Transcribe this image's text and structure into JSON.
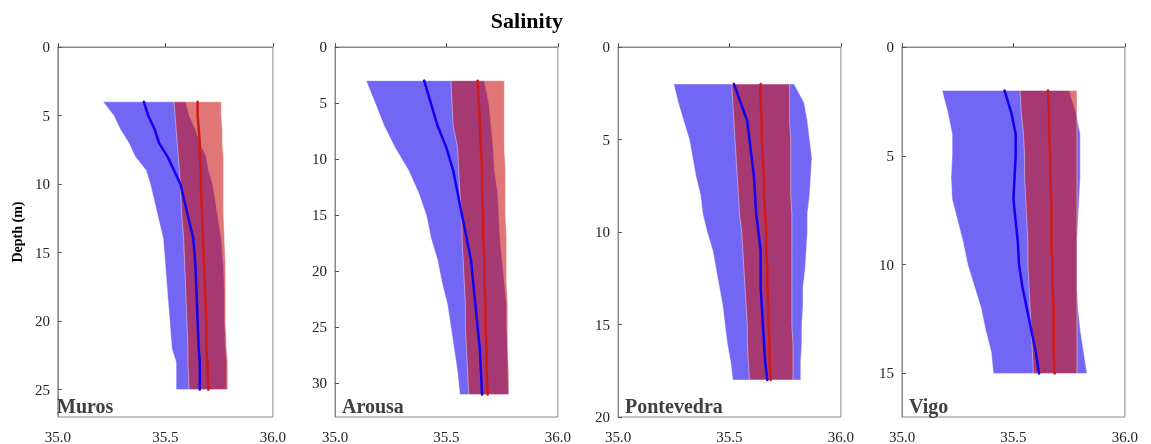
{
  "chart_data": [
    {
      "type": "line",
      "orientation": "horizontal",
      "ylabel": "Depth (m)",
      "annotations": [
        "Muros"
      ],
      "xlim": [
        35,
        36
      ],
      "xticks": [
        {
          "value": 35,
          "label": "35.0"
        },
        {
          "value": 35.5,
          "label": "35.5"
        },
        {
          "value": 36,
          "label": "36.0"
        }
      ],
      "ylim": [
        27,
        0
      ],
      "yticks": [
        0,
        5,
        10,
        15,
        20,
        25
      ],
      "grid": false,
      "marker": "none",
      "line_style": "solid",
      "x": [
        4,
        5,
        6,
        7,
        8,
        9,
        10,
        12,
        14,
        16,
        18,
        20,
        22,
        23,
        25
      ],
      "series": [
        {
          "color": "#1400ee",
          "values": [
            35.4,
            35.42,
            35.45,
            35.47,
            35.51,
            35.54,
            35.57,
            35.6,
            35.63,
            35.64,
            35.645,
            35.65,
            35.655,
            35.66,
            35.66
          ],
          "lower": [
            35.21,
            35.26,
            35.29,
            35.33,
            35.36,
            35.41,
            35.43,
            35.46,
            35.49,
            35.5,
            35.51,
            35.52,
            35.53,
            35.55,
            35.55
          ],
          "upper": [
            35.595,
            35.61,
            35.64,
            35.66,
            35.69,
            35.7,
            35.72,
            35.74,
            35.76,
            35.77,
            35.775,
            35.775,
            35.78,
            35.785,
            35.785
          ]
        },
        {
          "color": "#cc1a1a",
          "values": [
            35.65,
            35.65,
            35.655,
            35.66,
            35.66,
            35.665,
            35.665,
            35.67,
            35.675,
            35.68,
            35.685,
            35.69,
            35.69,
            35.695,
            35.7
          ],
          "lower": [
            35.54,
            35.545,
            35.55,
            35.555,
            35.56,
            35.565,
            35.57,
            35.575,
            35.585,
            35.59,
            35.595,
            35.6,
            35.605,
            35.605,
            35.61
          ],
          "upper": [
            35.76,
            35.76,
            35.765,
            35.765,
            35.77,
            35.77,
            35.77,
            35.77,
            35.775,
            35.78,
            35.78,
            35.78,
            35.785,
            35.79,
            35.79
          ]
        }
      ]
    },
    {
      "type": "line",
      "orientation": "horizontal",
      "title": "Salinity",
      "annotations": [
        "Arousa"
      ],
      "xlim": [
        35,
        36
      ],
      "xticks": [
        {
          "value": 35,
          "label": "35.0"
        },
        {
          "value": 35.5,
          "label": "35.5"
        },
        {
          "value": 36,
          "label": "36.0"
        }
      ],
      "ylim": [
        33,
        0
      ],
      "yticks": [
        0,
        5,
        10,
        15,
        20,
        25,
        30
      ],
      "grid": false,
      "marker": "none",
      "line_style": "solid",
      "x": [
        3,
        5,
        7,
        9,
        11,
        13,
        15,
        17,
        19,
        21,
        23,
        25,
        27,
        29,
        31
      ],
      "series": [
        {
          "color": "#1400ee",
          "values": [
            35.4,
            35.43,
            35.46,
            35.5,
            35.53,
            35.55,
            35.57,
            35.59,
            35.61,
            35.62,
            35.63,
            35.64,
            35.65,
            35.655,
            35.66
          ],
          "lower": [
            35.14,
            35.18,
            35.22,
            35.27,
            35.33,
            35.375,
            35.41,
            35.43,
            35.46,
            35.48,
            35.505,
            35.52,
            35.535,
            35.55,
            35.56
          ],
          "upper": [
            35.67,
            35.69,
            35.7,
            35.71,
            35.715,
            35.73,
            35.735,
            35.74,
            35.75,
            35.76,
            35.77,
            35.77,
            35.775,
            35.775,
            35.78
          ]
        },
        {
          "color": "#cc1a1a",
          "values": [
            35.64,
            35.645,
            35.65,
            35.655,
            35.66,
            35.66,
            35.665,
            35.665,
            35.67,
            35.67,
            35.675,
            35.675,
            35.68,
            35.68,
            35.685
          ],
          "lower": [
            35.52,
            35.525,
            35.53,
            35.55,
            35.555,
            35.56,
            35.57,
            35.57,
            35.575,
            35.58,
            35.585,
            35.585,
            35.59,
            35.595,
            35.6
          ],
          "upper": [
            35.76,
            35.76,
            35.76,
            35.76,
            35.765,
            35.765,
            35.765,
            35.77,
            35.77,
            35.77,
            35.775,
            35.775,
            35.775,
            35.78,
            35.78
          ]
        }
      ]
    },
    {
      "type": "line",
      "orientation": "horizontal",
      "annotations": [
        "Pontevedra"
      ],
      "xlim": [
        35,
        36
      ],
      "xticks": [
        {
          "value": 35,
          "label": "35.0"
        },
        {
          "value": 35.5,
          "label": "35.5"
        },
        {
          "value": 36,
          "label": "36.0"
        }
      ],
      "ylim": [
        20,
        0
      ],
      "yticks": [
        0,
        5,
        10,
        15,
        20
      ],
      "grid": false,
      "marker": "none",
      "line_style": "solid",
      "x": [
        2,
        3,
        4,
        5,
        6,
        7,
        8,
        9,
        10,
        11,
        12,
        13,
        14,
        15,
        16,
        17,
        18
      ],
      "series": [
        {
          "color": "#1400ee",
          "values": [
            35.52,
            35.55,
            35.58,
            35.59,
            35.6,
            35.61,
            35.615,
            35.62,
            35.63,
            35.64,
            35.64,
            35.64,
            35.645,
            35.65,
            35.655,
            35.66,
            35.67
          ],
          "lower": [
            35.25,
            35.27,
            35.295,
            35.32,
            35.335,
            35.35,
            35.37,
            35.38,
            35.4,
            35.425,
            35.44,
            35.455,
            35.47,
            35.48,
            35.49,
            35.505,
            35.515
          ],
          "upper": [
            35.79,
            35.835,
            35.85,
            35.86,
            35.87,
            35.865,
            35.86,
            35.85,
            35.85,
            35.845,
            35.84,
            35.83,
            35.83,
            35.825,
            35.825,
            35.82,
            35.82
          ]
        },
        {
          "color": "#cc1a1a",
          "values": [
            35.64,
            35.64,
            35.645,
            35.645,
            35.65,
            35.655,
            35.655,
            35.66,
            35.665,
            35.665,
            35.67,
            35.67,
            35.675,
            35.675,
            35.68,
            35.68,
            35.685
          ],
          "lower": [
            35.51,
            35.515,
            35.52,
            35.525,
            35.53,
            35.535,
            35.54,
            35.545,
            35.555,
            35.56,
            35.565,
            35.57,
            35.575,
            35.58,
            35.58,
            35.585,
            35.59
          ],
          "upper": [
            35.77,
            35.77,
            35.77,
            35.775,
            35.775,
            35.775,
            35.775,
            35.78,
            35.78,
            35.78,
            35.78,
            35.78,
            35.78,
            35.78,
            35.785,
            35.785,
            35.785
          ]
        }
      ]
    },
    {
      "type": "line",
      "orientation": "horizontal",
      "annotations": [
        "Vigo"
      ],
      "xlim": [
        35,
        36
      ],
      "xticks": [
        {
          "value": 35,
          "label": "35.0"
        },
        {
          "value": 35.5,
          "label": "35.5"
        },
        {
          "value": 36,
          "label": "36.0"
        }
      ],
      "ylim": [
        17,
        0
      ],
      "yticks": [
        0,
        5,
        10,
        15
      ],
      "grid": false,
      "marker": "none",
      "line_style": "solid",
      "x": [
        2,
        3,
        4,
        5,
        6,
        7,
        8,
        9,
        10,
        11,
        12,
        13,
        14,
        15
      ],
      "series": [
        {
          "color": "#1400ee",
          "values": [
            35.46,
            35.49,
            35.51,
            35.51,
            35.505,
            35.5,
            35.51,
            35.52,
            35.525,
            35.54,
            35.56,
            35.58,
            35.6,
            35.615
          ],
          "lower": [
            35.18,
            35.205,
            35.225,
            35.225,
            35.22,
            35.225,
            35.25,
            35.275,
            35.295,
            35.325,
            35.355,
            35.375,
            35.4,
            35.41
          ],
          "upper": [
            35.75,
            35.78,
            35.8,
            35.8,
            35.8,
            35.795,
            35.79,
            35.785,
            35.785,
            35.785,
            35.79,
            35.8,
            35.815,
            35.83
          ]
        },
        {
          "color": "#cc1a1a",
          "values": [
            35.655,
            35.66,
            35.66,
            35.665,
            35.665,
            35.67,
            35.67,
            35.67,
            35.675,
            35.675,
            35.68,
            35.68,
            35.68,
            35.685
          ],
          "lower": [
            35.53,
            35.535,
            35.545,
            35.55,
            35.55,
            35.555,
            35.56,
            35.565,
            35.565,
            35.57,
            35.575,
            35.58,
            35.585,
            35.59
          ],
          "upper": [
            35.785,
            35.785,
            35.785,
            35.785,
            35.785,
            35.785,
            35.785,
            35.785,
            35.785,
            35.785,
            35.785,
            35.785,
            35.785,
            35.785
          ]
        }
      ]
    }
  ]
}
